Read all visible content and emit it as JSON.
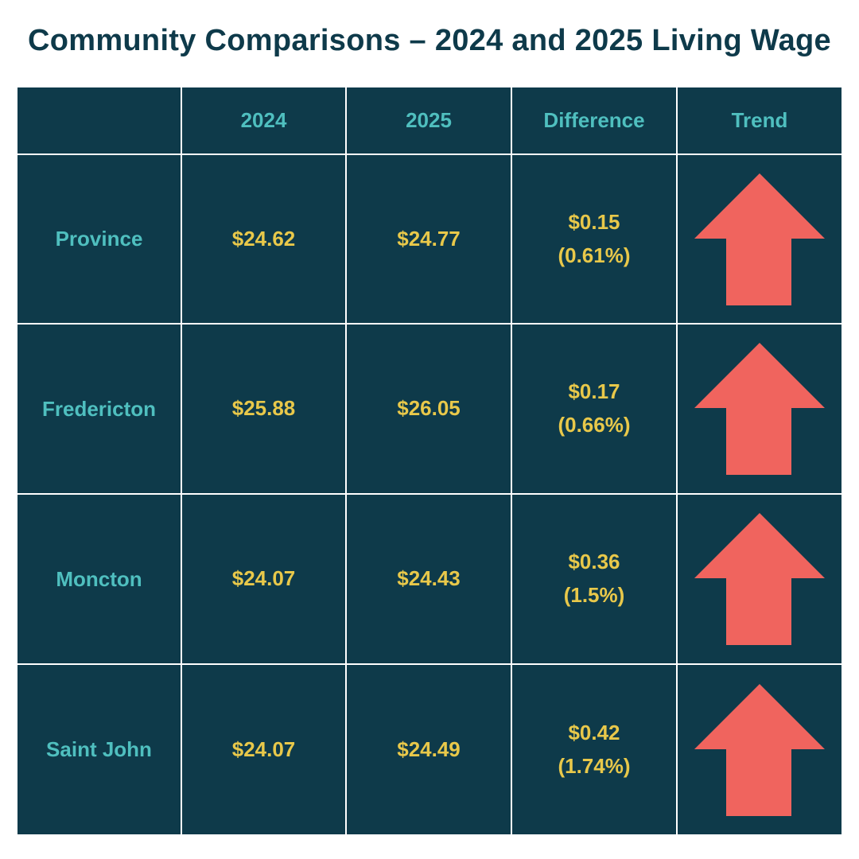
{
  "title": "Community Comparisons – 2024 and 2025 Living Wage",
  "colors": {
    "background": "#ffffff",
    "cell": "#0e3a4a",
    "label": "#4fbfbf",
    "value": "#e8c84a",
    "arrow": "#f0645e"
  },
  "chart_data": {
    "type": "table",
    "title": "Community Comparisons – 2024 and 2025 Living Wage",
    "columns": [
      "",
      "2024",
      "2025",
      "Difference",
      "Trend"
    ],
    "rows": [
      {
        "community": "Province",
        "y2024": "$24.62",
        "y2025": "$24.77",
        "diff_amount": "$0.15",
        "diff_percent": "(0.61%)",
        "trend": "up-arrow-icon"
      },
      {
        "community": "Fredericton",
        "y2024": "$25.88",
        "y2025": "$26.05",
        "diff_amount": "$0.17",
        "diff_percent": "(0.66%)",
        "trend": "up-arrow-icon"
      },
      {
        "community": "Moncton",
        "y2024": "$24.07",
        "y2025": "$24.43",
        "diff_amount": "$0.36",
        "diff_percent": "(1.5%)",
        "trend": "up-arrow-icon"
      },
      {
        "community": "Saint John",
        "y2024": "$24.07",
        "y2025": "$24.49",
        "diff_amount": "$0.42",
        "diff_percent": "(1.74%)",
        "trend": "up-arrow-icon"
      }
    ]
  }
}
